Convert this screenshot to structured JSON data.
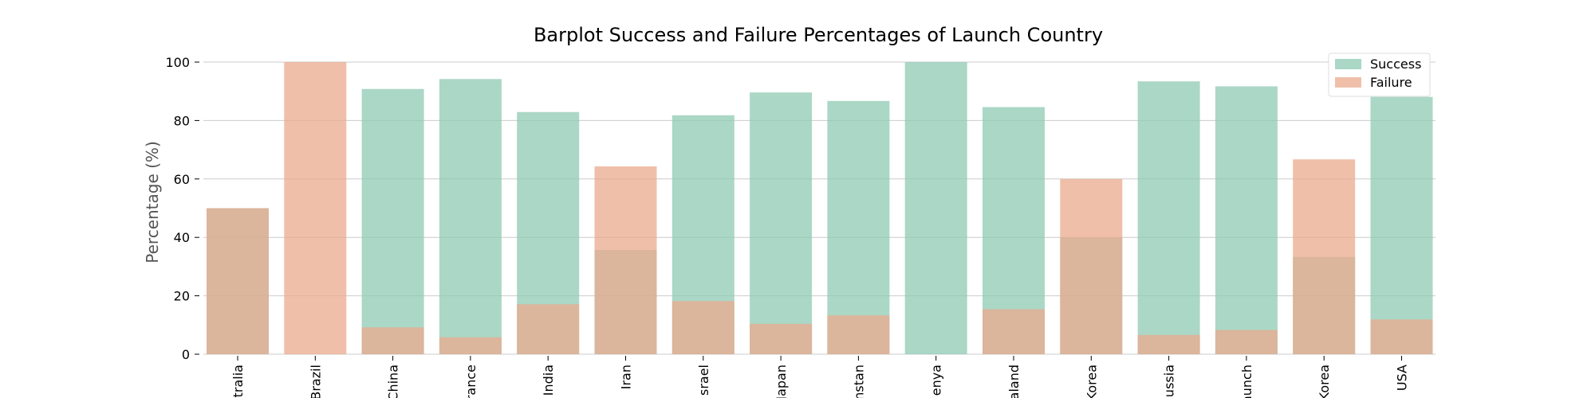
{
  "chart_data": {
    "type": "bar",
    "title": "Barplot Success and Failure Percentages of Launch Country",
    "xlabel": "",
    "ylabel": "Percentage (%)",
    "ylim": [
      0,
      100
    ],
    "yticks": [
      0,
      20,
      40,
      60,
      80,
      100
    ],
    "grid": true,
    "legend_position": "top-right",
    "categories": [
      "Australia",
      "Brazil",
      "China",
      "France",
      "India",
      "Iran",
      "Israel",
      "Japan",
      "Kazakhstan",
      "Kenya",
      "New Zealand",
      "North Korea",
      "Russia",
      "Sea Launch",
      "South Korea",
      "USA"
    ],
    "category_labels_visible": [
      "tralia",
      "Brazil",
      "China",
      "rance",
      "India",
      "Iran",
      "srael",
      "Japan",
      "nstan",
      "enya",
      "ealand",
      "Korea",
      "ussia",
      "aunch",
      "Korea",
      "USA"
    ],
    "series": [
      {
        "name": "Success",
        "color": "#8fcab3",
        "values": [
          50,
          0,
          90.8,
          94.2,
          82.9,
          35.7,
          81.8,
          89.6,
          86.7,
          100,
          84.6,
          40,
          93.4,
          91.7,
          33.3,
          88.1
        ]
      },
      {
        "name": "Failure",
        "color": "#eba98e",
        "values": [
          50,
          100,
          9.2,
          5.8,
          17.1,
          64.3,
          18.2,
          10.4,
          13.3,
          0,
          15.4,
          60,
          6.6,
          8.3,
          66.7,
          11.9
        ]
      }
    ]
  }
}
